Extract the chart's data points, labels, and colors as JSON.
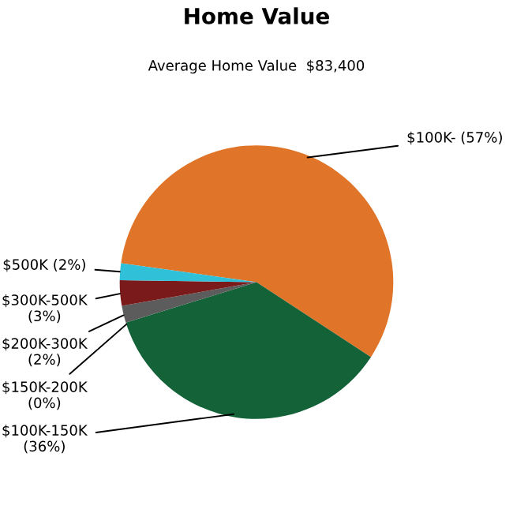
{
  "chart_data": {
    "type": "pie",
    "title": "Home Value",
    "subtitle": "Average Home Value  $83,400",
    "categories": [
      "$100K-",
      "$100K-150K",
      "$150K-200K",
      "$200K-300K",
      "$300K-500K",
      "$500K"
    ],
    "values": [
      57,
      36,
      0,
      2,
      3,
      2
    ],
    "value_labels": [
      "(57%)",
      "(36%)",
      "(0%)",
      "(2%)",
      "(3%)",
      "(2%)"
    ],
    "colors": [
      "#e07428",
      "#136238",
      "#808080",
      "#5c5c5c",
      "#7a1a1a",
      "#30c0d8"
    ],
    "legend": false
  }
}
